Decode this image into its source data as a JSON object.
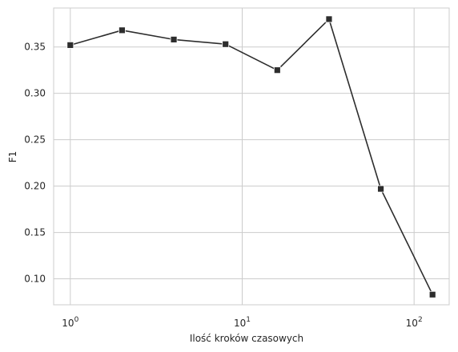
{
  "chart_data": {
    "type": "line",
    "xlabel": "Ilość kroków czasowych",
    "ylabel": "F1",
    "xscale": "log",
    "xlim": [
      0.8,
      160
    ],
    "ylim": [
      0.072,
      0.392
    ],
    "x_ticks": [
      {
        "base": "10",
        "exp": "0",
        "value": 1
      },
      {
        "base": "10",
        "exp": "1",
        "value": 10
      },
      {
        "base": "10",
        "exp": "2",
        "value": 100
      }
    ],
    "y_ticks": [
      "0.10",
      "0.15",
      "0.20",
      "0.25",
      "0.30",
      "0.35"
    ],
    "y_tick_values": [
      0.1,
      0.15,
      0.2,
      0.25,
      0.3,
      0.35
    ],
    "grid": true,
    "series": [
      {
        "color": "#2d2d2d",
        "marker": "square",
        "x": [
          1,
          2,
          4,
          8,
          16,
          32,
          64,
          128
        ],
        "y": [
          0.352,
          0.368,
          0.358,
          0.353,
          0.325,
          0.38,
          0.197,
          0.083
        ]
      }
    ]
  }
}
